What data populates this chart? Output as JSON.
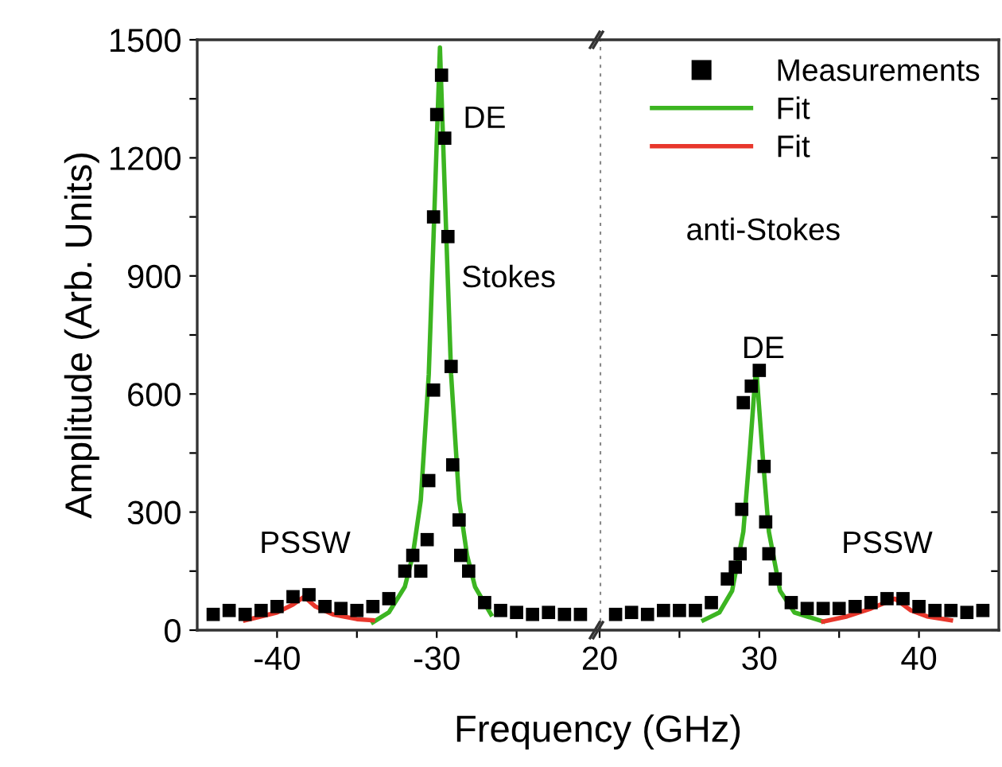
{
  "chart_data": [
    {
      "type": "scatter",
      "xlabel": "Frequency (GHz)",
      "ylabel": "Amplitude (Arb. Units)",
      "xlim": [
        -45,
        -20
      ],
      "ylim": [
        0,
        1500
      ],
      "xticks": [
        -40,
        {
          "value": -35,
          "label": null
        },
        -30,
        {
          "value": -25,
          "label": null
        }
      ],
      "yticks": [
        0,
        {
          "value": 150,
          "label": null
        },
        300,
        {
          "value": 450,
          "label": null
        },
        600,
        {
          "value": 750,
          "label": null
        },
        900,
        {
          "value": 1050,
          "label": null
        },
        1200,
        {
          "value": 1350,
          "label": null
        },
        1500
      ],
      "grid": false,
      "legend": false,
      "annotations": [
        "PSSW",
        "DE",
        "Stokes"
      ],
      "series": [
        {
          "marker": "square",
          "color": "#000000",
          "x": [
            -44,
            -43,
            -42,
            -41,
            -40,
            -39,
            -38,
            -37,
            -36,
            -35,
            -34,
            -33,
            -32,
            -31.5,
            -31,
            -30.6,
            -30.5,
            -30.2,
            -30.2,
            -30,
            -29.7,
            -29.5,
            -29.3,
            -29.1,
            -29,
            -28.6,
            -28.5,
            -28,
            -27,
            -26,
            -25,
            -24,
            -23,
            -22,
            -21
          ],
          "values": [
            40,
            50,
            40,
            50,
            60,
            85,
            90,
            60,
            55,
            50,
            60,
            80,
            150,
            190,
            150,
            230,
            380,
            610,
            1050,
            1310,
            1410,
            1250,
            1000,
            670,
            420,
            280,
            190,
            150,
            70,
            50,
            45,
            40,
            45,
            40,
            40
          ]
        },
        {
          "type": "line",
          "color": "#3cb521",
          "x": [
            -34,
            -33,
            -32,
            -31.5,
            -31,
            -30.5,
            -30.2,
            -29.8,
            -29.4,
            -29.1,
            -28.6,
            -28.1,
            -27.6,
            -26.6
          ],
          "values": [
            20,
            45,
            110,
            190,
            330,
            650,
            1000,
            1480,
            1000,
            650,
            330,
            190,
            110,
            40
          ]
        },
        {
          "type": "line",
          "color": "#e8372c",
          "x": [
            -42,
            -41,
            -40,
            -39,
            -38.3,
            -37.6,
            -36.5,
            -35,
            -34
          ],
          "values": [
            25,
            35,
            45,
            65,
            85,
            60,
            40,
            28,
            25
          ]
        }
      ]
    },
    {
      "type": "scatter",
      "xlim": [
        20,
        45
      ],
      "ylim": [
        0,
        1500
      ],
      "xticks": [
        20,
        {
          "value": 25,
          "label": null
        },
        30,
        {
          "value": 35,
          "label": null
        },
        40
      ],
      "yticks": [
        {
          "value": 0,
          "label": null
        },
        {
          "value": 150,
          "label": null
        },
        {
          "value": 300,
          "label": null
        },
        {
          "value": 450,
          "label": null
        },
        {
          "value": 600,
          "label": null
        },
        {
          "value": 750,
          "label": null
        },
        {
          "value": 900,
          "label": null
        },
        {
          "value": 1050,
          "label": null
        },
        {
          "value": 1200,
          "label": null
        },
        {
          "value": 1350,
          "label": null
        },
        {
          "value": 1500,
          "label": null
        }
      ],
      "tick_labels": "x",
      "grid": false,
      "legend": "top right",
      "ref_lines": [
        {
          "axis": "x",
          "value": 20,
          "color": "#888888",
          "line_style": "dotted"
        }
      ],
      "annotations": [
        "DE",
        "anti-Stokes",
        "PSSW"
      ],
      "series": [
        {
          "name": "Measurements",
          "marker": "square",
          "color": "#000000",
          "x": [
            21,
            22,
            23,
            24,
            25,
            26,
            27,
            28,
            28.5,
            28.8,
            28.9,
            29,
            29.5,
            30,
            30.3,
            30.4,
            30.6,
            31,
            32,
            33,
            34,
            35,
            36,
            37,
            38,
            39,
            40,
            41,
            42,
            43,
            44
          ],
          "values": [
            40,
            45,
            40,
            50,
            50,
            50,
            70,
            130,
            160,
            194,
            307,
            578,
            620,
            660,
            416,
            275,
            194,
            130,
            70,
            55,
            55,
            55,
            60,
            70,
            80,
            80,
            60,
            50,
            50,
            45,
            50
          ]
        },
        {
          "name": "Fit",
          "type": "line",
          "color": "#3cb521",
          "x": [
            26.5,
            27.5,
            28.3,
            29,
            29.4,
            29.8,
            30.2,
            30.6,
            31.3,
            32.2,
            34
          ],
          "values": [
            25,
            45,
            100,
            250,
            450,
            670,
            450,
            250,
            100,
            45,
            22
          ]
        },
        {
          "name": "Fit",
          "type": "line",
          "color": "#e8372c",
          "x": [
            34,
            35.5,
            37,
            38.5,
            39.5,
            40.5,
            42
          ],
          "values": [
            22,
            35,
            55,
            80,
            50,
            35,
            25
          ]
        }
      ]
    }
  ]
}
